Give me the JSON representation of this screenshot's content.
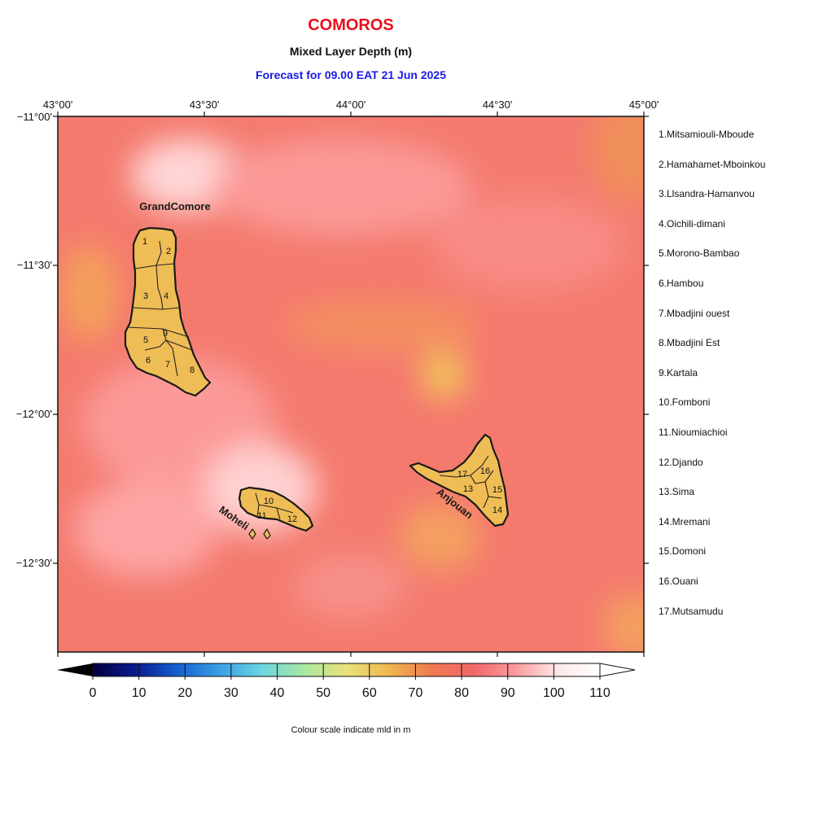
{
  "title": "COMOROS",
  "subtitle": "Mixed Layer Depth (m)",
  "forecast": "Forecast for  09.00 EAT 21 Jun 2025",
  "lon_labels": [
    "43°00'",
    "43°30'",
    "44°00'",
    "44°30'",
    "45°00'"
  ],
  "lat_labels": [
    "−11°00'",
    "−11°30'",
    "−12°00'",
    "−12°30'"
  ],
  "islands": {
    "grand_comore": "GrandComore",
    "moheli": "Moheli",
    "anjouan": "Anjouan"
  },
  "region_numbers": [
    "1",
    "2",
    "3",
    "4",
    "5",
    "6",
    "7",
    "8",
    "9",
    "10",
    "11",
    "12",
    "13",
    "14",
    "15",
    "16",
    "17"
  ],
  "regions": [
    "1.Mitsamiouli-Mboude",
    "2.Hamahamet-Mboinkou",
    "3.Llsandra-Hamanvou",
    "4.Oichili-dimani",
    "5.Morono-Bambao",
    "6.Hambou",
    "7.Mbadjini ouest",
    "8.Mbadjini Est",
    "9.Kartala",
    "10.Fomboni",
    "11.Nioumiachioi",
    "12.Djando",
    "13.Sima",
    "14.Mremani",
    "15.Domoni",
    "16.Ouani",
    "17.Mutsamudu"
  ],
  "colorbar": {
    "ticks": [
      "0",
      "10",
      "20",
      "30",
      "40",
      "50",
      "60",
      "70",
      "80",
      "90",
      "100",
      "110"
    ],
    "caption": "Colour scale indicate mld in m",
    "stops": [
      "#000040",
      "#0a1a8c",
      "#1560d0",
      "#3aa0e6",
      "#6ad6e0",
      "#a8e8a0",
      "#e8e27a",
      "#f0b850",
      "#f07a50",
      "#f2686a",
      "#fa9a9e",
      "#ffe8e8",
      "#ffffff"
    ]
  }
}
